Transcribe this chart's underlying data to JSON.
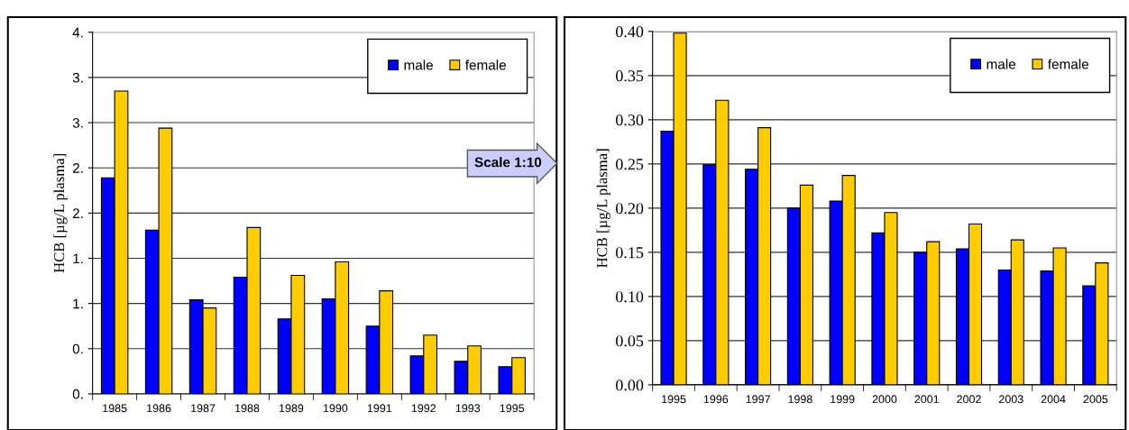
{
  "chart_data": [
    {
      "type": "bar",
      "ylabel": "HCB [µg/L plasma]",
      "categories": [
        "1985",
        "1986",
        "1987",
        "1988",
        "1989",
        "1990",
        "1991",
        "1992",
        "1993",
        "1995"
      ],
      "series": [
        {
          "name": "male",
          "color": "#0000ff",
          "values": [
            2.39,
            1.81,
            1.04,
            1.29,
            0.83,
            1.05,
            0.75,
            0.42,
            0.36,
            0.3
          ]
        },
        {
          "name": "female",
          "color": "#ffcc00",
          "values": [
            3.35,
            2.94,
            0.95,
            1.84,
            1.31,
            1.46,
            1.14,
            0.65,
            0.53,
            0.4
          ]
        }
      ],
      "ylim": [
        0,
        4
      ],
      "yticks": [
        {
          "value": 0,
          "label": "0."
        },
        {
          "value": 0.5,
          "label": "0."
        },
        {
          "value": 1,
          "label": "1."
        },
        {
          "value": 1.5,
          "label": "1."
        },
        {
          "value": 2,
          "label": "2."
        },
        {
          "value": 2.5,
          "label": "2."
        },
        {
          "value": 3,
          "label": "3."
        },
        {
          "value": 3.5,
          "label": "3."
        },
        {
          "value": 4,
          "label": "4."
        }
      ],
      "grid": "y",
      "legend": "top right",
      "annotations": [
        "Scale 1:10"
      ]
    },
    {
      "type": "bar",
      "ylabel": "HCB [µg/L plasma]",
      "categories": [
        "1995",
        "1996",
        "1997",
        "1998",
        "1999",
        "2000",
        "2001",
        "2002",
        "2003",
        "2004",
        "2005"
      ],
      "series": [
        {
          "name": "male",
          "color": "#0000ff",
          "values": [
            0.287,
            0.249,
            0.244,
            0.2,
            0.208,
            0.172,
            0.15,
            0.154,
            0.13,
            0.129,
            0.112
          ]
        },
        {
          "name": "female",
          "color": "#ffcc00",
          "values": [
            0.398,
            0.322,
            0.291,
            0.226,
            0.237,
            0.195,
            0.162,
            0.182,
            0.164,
            0.155,
            0.138
          ]
        }
      ],
      "ylim": [
        0,
        0.4
      ],
      "yticks": [
        {
          "value": 0,
          "label": "0.00"
        },
        {
          "value": 0.05,
          "label": "0.05"
        },
        {
          "value": 0.1,
          "label": "0.10"
        },
        {
          "value": 0.15,
          "label": "0.15"
        },
        {
          "value": 0.2,
          "label": "0.20"
        },
        {
          "value": 0.25,
          "label": "0.25"
        },
        {
          "value": 0.3,
          "label": "0.30"
        },
        {
          "value": 0.35,
          "label": "0.35"
        },
        {
          "value": 0.4,
          "label": "0.40"
        }
      ],
      "grid": "y",
      "legend": "top right"
    }
  ]
}
